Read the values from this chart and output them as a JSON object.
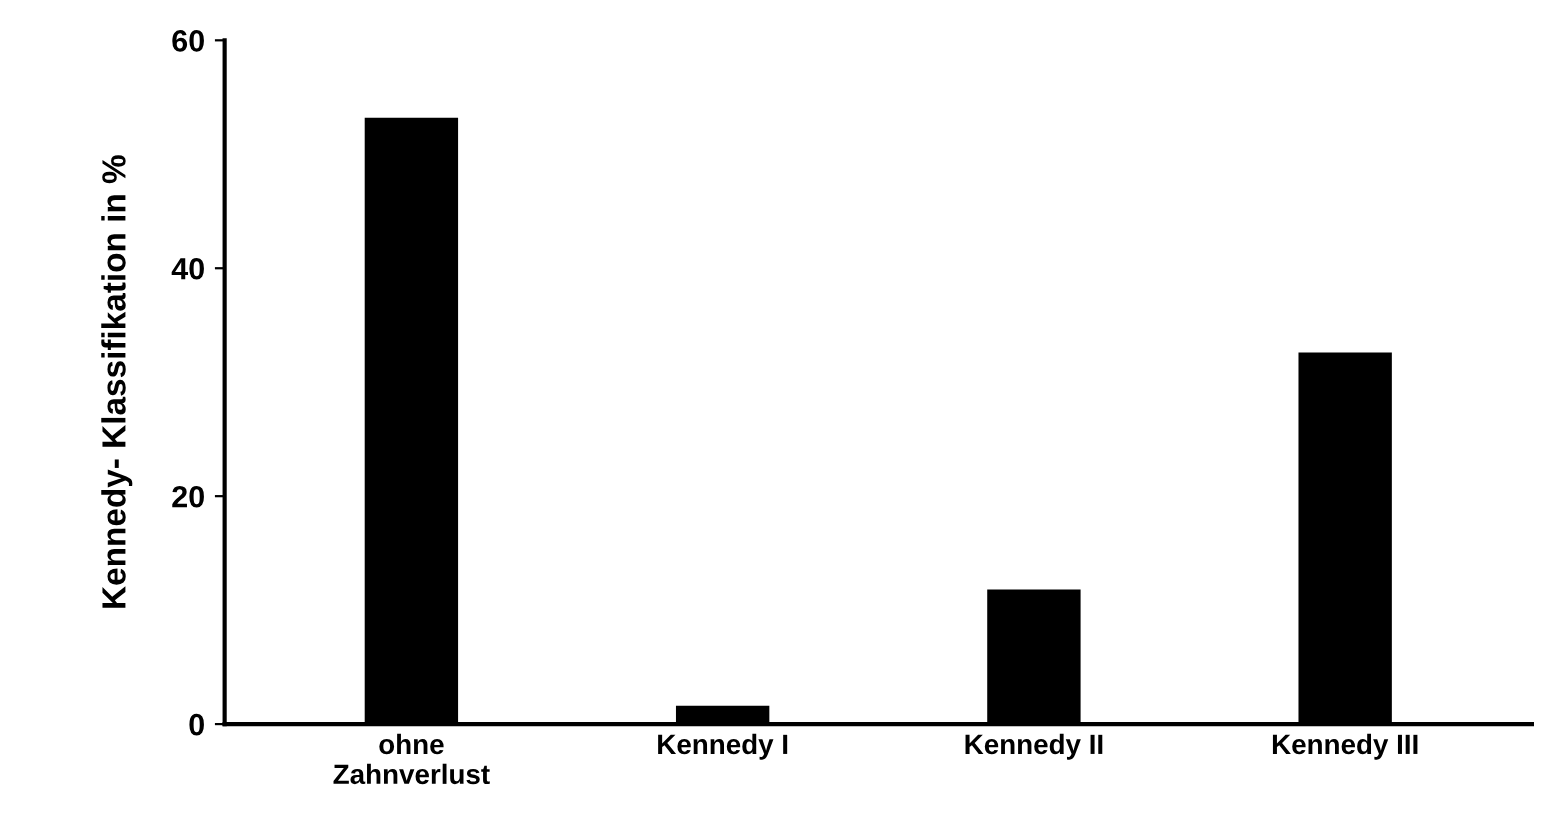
{
  "chart_data": {
    "type": "bar",
    "ylabel": "Kennedy- Klassifikation in %",
    "categories": [
      "ohne\nZahnverlust",
      "Kennedy I",
      "Kennedy II",
      "Kennedy III"
    ],
    "values": [
      53.2,
      1.6,
      11.8,
      32.6
    ],
    "color": "#000000",
    "ylim": [
      0,
      60
    ],
    "yticks": [
      0,
      20,
      40,
      60
    ],
    "grid": false,
    "legend": false
  }
}
